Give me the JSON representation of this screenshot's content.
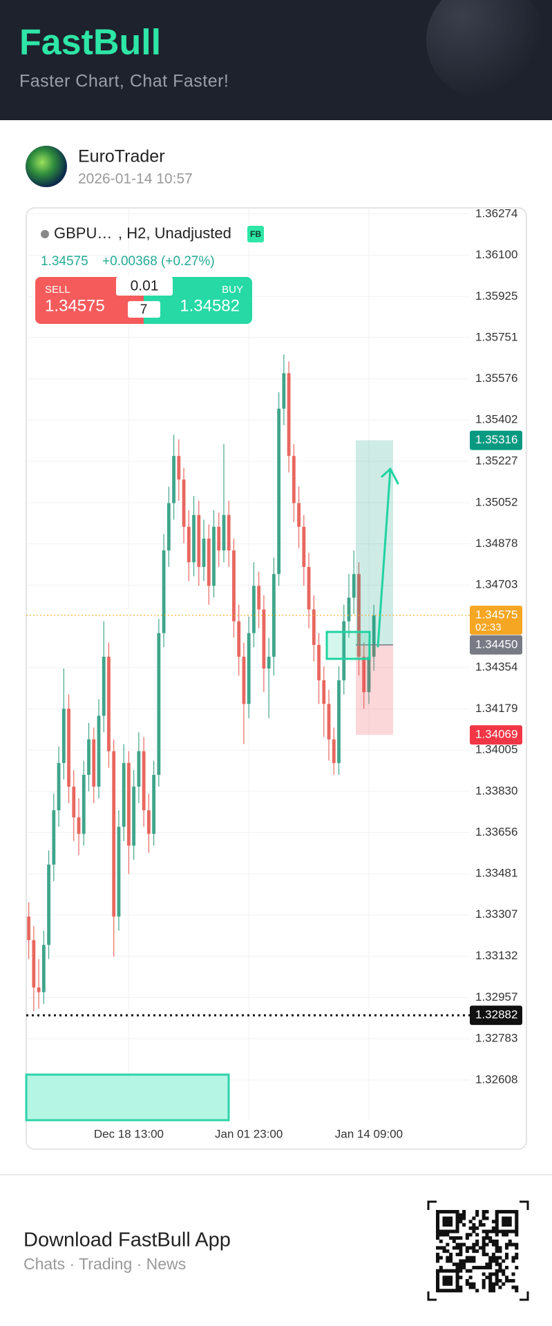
{
  "header": {
    "brand": "FastBull",
    "tagline": "Faster Chart, Chat Faster!"
  },
  "post": {
    "author": "EuroTrader",
    "time": "2026-01-14 10:57"
  },
  "chart_data": {
    "type": "candlestick",
    "symbol": "GBPU…",
    "info": ", H2, Unadjusted",
    "badge": "FB",
    "last": "1.34575",
    "change": "+0.00368 (+0.27%)",
    "trade": {
      "sell_label": "SELL",
      "sell": "1.34575",
      "buy_label": "BUY",
      "buy": "1.34582",
      "lot": "0.01",
      "count": "7"
    },
    "categories": [
      null,
      null,
      null,
      null,
      null,
      null,
      null,
      null,
      null,
      null,
      null,
      null,
      null,
      null,
      null,
      null,
      null,
      null,
      null,
      null,
      "Dec 18 13:00",
      null,
      null,
      null,
      null,
      null,
      null,
      null,
      null,
      null,
      null,
      null,
      null,
      null,
      null,
      null,
      null,
      null,
      null,
      null,
      null,
      null,
      null,
      null,
      "Jan 01 23:00",
      null,
      null,
      null,
      null,
      null,
      null,
      null,
      null,
      null,
      null,
      null,
      null,
      null,
      null,
      null,
      null,
      null,
      null,
      null,
      null,
      null,
      null,
      null,
      "Jan 14 09:00",
      null
    ],
    "open": [
      1.333,
      1.332,
      1.33,
      1.3298,
      1.3318,
      1.3352,
      1.3375,
      1.3395,
      1.3418,
      1.3385,
      1.3372,
      1.3365,
      1.339,
      1.3405,
      1.3385,
      1.3415,
      1.344,
      1.34,
      1.333,
      1.3368,
      1.3395,
      1.336,
      1.3385,
      1.34,
      1.3375,
      1.3365,
      1.339,
      1.345,
      1.3485,
      1.3505,
      1.3525,
      1.3515,
      1.3495,
      1.348,
      1.35,
      1.3478,
      1.349,
      1.347,
      1.3495,
      1.3485,
      1.35,
      1.3485,
      1.3455,
      1.344,
      1.342,
      1.345,
      1.347,
      1.346,
      1.3435,
      1.344,
      1.3475,
      1.3545,
      1.356,
      1.3525,
      1.3505,
      1.3495,
      1.3478,
      1.346,
      1.3445,
      1.343,
      1.342,
      1.3405,
      1.3395,
      1.343,
      1.3455,
      1.3465,
      1.3475,
      1.344,
      1.3425,
      1.344
    ],
    "high": [
      1.3336,
      1.3326,
      1.3312,
      1.3324,
      1.3358,
      1.3382,
      1.3402,
      1.3435,
      1.3424,
      1.3392,
      1.338,
      1.3396,
      1.3412,
      1.341,
      1.3422,
      1.3455,
      1.3446,
      1.3405,
      1.3375,
      1.3403,
      1.34,
      1.3392,
      1.3408,
      1.3406,
      1.3382,
      1.3396,
      1.3456,
      1.3492,
      1.3512,
      1.3534,
      1.3532,
      1.352,
      1.3502,
      1.3508,
      1.3506,
      1.3498,
      1.3496,
      1.3502,
      1.3501,
      1.353,
      1.3506,
      1.349,
      1.3462,
      1.3446,
      1.3457,
      1.348,
      1.3476,
      1.3466,
      1.3448,
      1.3482,
      1.3552,
      1.3568,
      1.3565,
      1.353,
      1.3512,
      1.35,
      1.3484,
      1.3466,
      1.345,
      1.3436,
      1.3426,
      1.341,
      1.3436,
      1.3462,
      1.3475,
      1.3485,
      1.348,
      1.3446,
      1.3448,
      1.3462
    ],
    "low": [
      1.3312,
      1.329,
      1.3291,
      1.3293,
      1.3312,
      1.3345,
      1.3368,
      1.3388,
      1.3378,
      1.3362,
      1.3356,
      1.336,
      1.3383,
      1.3378,
      1.338,
      1.3408,
      1.3393,
      1.3313,
      1.3324,
      1.3362,
      1.3348,
      1.3354,
      1.3378,
      1.3368,
      1.3357,
      1.336,
      1.3385,
      1.3444,
      1.3478,
      1.3498,
      1.3506,
      1.3488,
      1.3472,
      1.3474,
      1.347,
      1.3472,
      1.3462,
      1.3465,
      1.3478,
      1.348,
      1.3478,
      1.3448,
      1.3432,
      1.3403,
      1.3414,
      1.3444,
      1.3452,
      1.3425,
      1.3414,
      1.3432,
      1.347,
      1.3538,
      1.3518,
      1.3497,
      1.3486,
      1.347,
      1.3452,
      1.3438,
      1.342,
      1.3406,
      1.3396,
      1.339,
      1.339,
      1.3424,
      1.3448,
      1.3458,
      1.3432,
      1.3418,
      1.342,
      1.3434
    ],
    "close": [
      1.332,
      1.33,
      1.3298,
      1.3318,
      1.3352,
      1.3375,
      1.3395,
      1.3418,
      1.3385,
      1.3372,
      1.3365,
      1.339,
      1.3405,
      1.3385,
      1.3415,
      1.344,
      1.34,
      1.333,
      1.3368,
      1.3395,
      1.336,
      1.3385,
      1.34,
      1.3375,
      1.3365,
      1.339,
      1.345,
      1.3485,
      1.3505,
      1.3525,
      1.3515,
      1.3495,
      1.348,
      1.35,
      1.3478,
      1.349,
      1.347,
      1.3495,
      1.3485,
      1.35,
      1.3485,
      1.3455,
      1.344,
      1.342,
      1.345,
      1.347,
      1.346,
      1.3435,
      1.344,
      1.3475,
      1.3545,
      1.356,
      1.3525,
      1.3505,
      1.3495,
      1.3478,
      1.346,
      1.3445,
      1.343,
      1.342,
      1.3405,
      1.3395,
      1.343,
      1.3455,
      1.3465,
      1.3475,
      1.344,
      1.3425,
      1.344,
      1.34575
    ],
    "up_color": "#3fa58a",
    "down_color": "#e8675f",
    "ylim": [
      1.32438,
      1.363
    ],
    "yticks": [
      1.36274,
      {
        "value": 1.361,
        "label": "1.36100"
      },
      1.35925,
      1.35751,
      1.35576,
      1.35402,
      1.35227,
      1.35052,
      1.34878,
      1.34703,
      1.34354,
      1.34179,
      1.34005,
      {
        "value": 1.3383,
        "label": "1.33830"
      },
      1.33656,
      1.33481,
      1.33307,
      1.33132,
      1.32957,
      1.32783,
      1.32608
    ],
    "price_tags": [
      {
        "value": 1.35316,
        "color": "#089981"
      },
      {
        "value": 1.34575,
        "color": "#f5a623",
        "line": "dotted",
        "countdown": "02:33"
      },
      {
        "value": {
          "value": 1.3445,
          "label": "1.34450"
        },
        "color": "#787b86"
      },
      {
        "value": 1.34069,
        "color": "#f23645"
      },
      {
        "value": 1.32882,
        "color": "#111111",
        "line": "heavy-dotted"
      }
    ],
    "grid": true
  },
  "footer": {
    "title": "Download FastBull App",
    "subtitle": "Chats · Trading · News"
  }
}
